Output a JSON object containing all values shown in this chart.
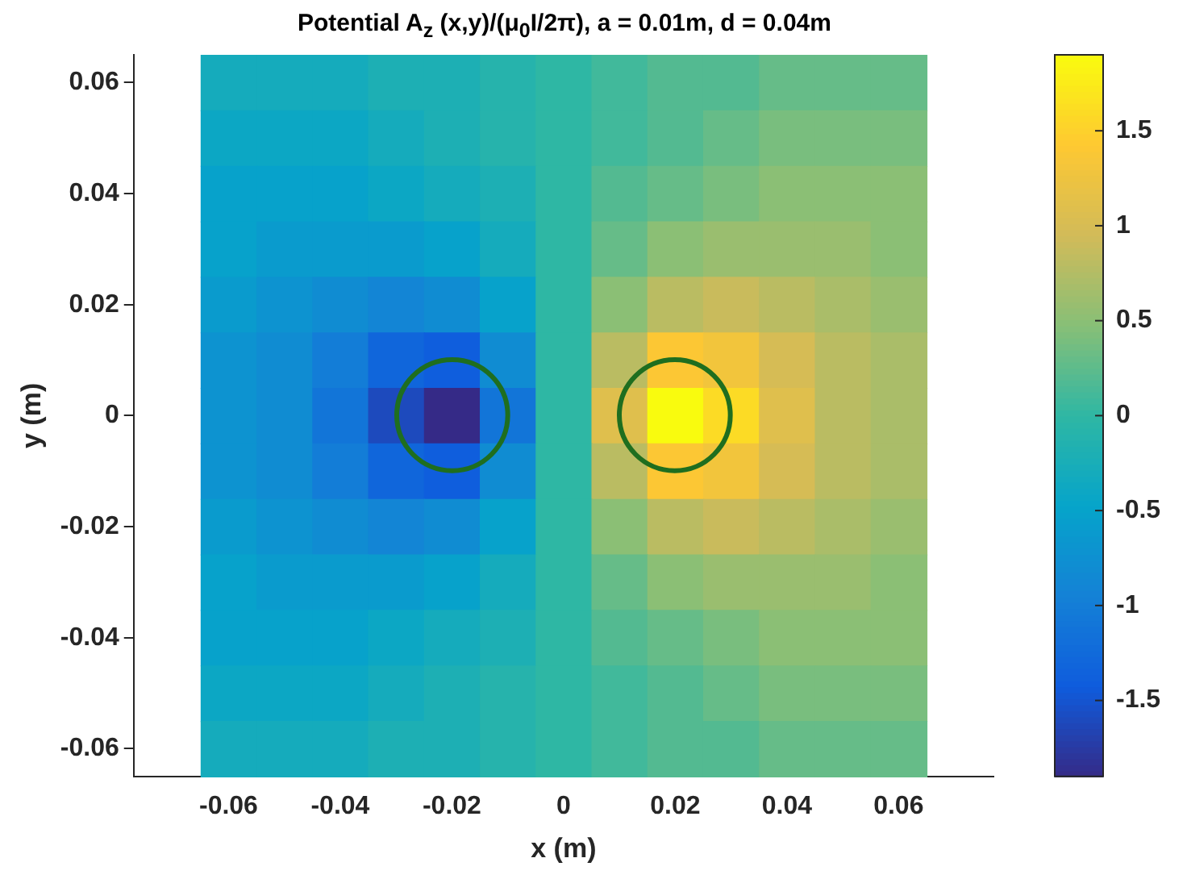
{
  "chart_data": {
    "type": "heatmap",
    "title": "Potential A$_{z}$ (x,y)/(μ$_{0}$I/2π),  a = 0.01m, d = 0.04m",
    "xlabel": "x (m)",
    "ylabel": "y (m)",
    "categories": [
      "-0.06",
      null,
      "-0.04",
      null,
      "-0.02",
      null,
      "0",
      null,
      "0.02",
      null,
      "0.04",
      null,
      "0.06"
    ],
    "y_categories": [
      "0.06",
      null,
      "0.04",
      null,
      "0.02",
      null,
      "0",
      null,
      "-0.02",
      null,
      "-0.04",
      null,
      "-0.06"
    ],
    "cells": [
      [
        -0.3,
        -0.3,
        -0.3,
        -0.2,
        -0.2,
        -0.1,
        0,
        0.1,
        0.2,
        0.2,
        0.3,
        0.3,
        0.3
      ],
      [
        -0.4,
        -0.4,
        -0.4,
        -0.3,
        -0.2,
        -0.1,
        0,
        0.1,
        0.2,
        0.3,
        0.4,
        0.4,
        0.4
      ],
      [
        -0.5,
        -0.5,
        -0.5,
        -0.4,
        -0.3,
        -0.2,
        0,
        0.2,
        0.3,
        0.4,
        0.5,
        0.5,
        0.5
      ],
      [
        -0.5,
        -0.6,
        -0.6,
        -0.6,
        -0.5,
        -0.3,
        0,
        0.3,
        0.5,
        0.6,
        0.6,
        0.6,
        0.5
      ],
      [
        -0.6,
        -0.7,
        -0.8,
        -0.9,
        -0.8,
        -0.5,
        0,
        0.5,
        0.8,
        0.9,
        0.8,
        0.7,
        0.6
      ],
      [
        -0.7,
        -0.8,
        -1.0,
        -1.3,
        -1.4,
        -0.8,
        0,
        0.8,
        1.4,
        1.3,
        1.0,
        0.8,
        0.7
      ],
      [
        -0.7,
        -0.8,
        -1.1,
        -1.6,
        -1.9,
        -1.1,
        0,
        1.1,
        1.9,
        1.6,
        1.1,
        0.8,
        0.7
      ],
      [
        -0.7,
        -0.8,
        -1.0,
        -1.3,
        -1.4,
        -0.8,
        0,
        0.8,
        1.4,
        1.3,
        1.0,
        0.8,
        0.7
      ],
      [
        -0.6,
        -0.7,
        -0.8,
        -0.9,
        -0.8,
        -0.5,
        0,
        0.5,
        0.8,
        0.9,
        0.8,
        0.7,
        0.6
      ],
      [
        -0.5,
        -0.6,
        -0.6,
        -0.6,
        -0.5,
        -0.3,
        0,
        0.3,
        0.5,
        0.6,
        0.6,
        0.6,
        0.5
      ],
      [
        -0.5,
        -0.5,
        -0.5,
        -0.4,
        -0.3,
        -0.2,
        0,
        0.2,
        0.3,
        0.4,
        0.5,
        0.5,
        0.5
      ],
      [
        -0.4,
        -0.4,
        -0.4,
        -0.3,
        -0.2,
        -0.1,
        0,
        0.1,
        0.2,
        0.3,
        0.4,
        0.4,
        0.4
      ],
      [
        -0.3,
        -0.3,
        -0.3,
        -0.2,
        -0.2,
        -0.1,
        0,
        0.1,
        0.2,
        0.2,
        0.3,
        0.3,
        0.3
      ]
    ],
    "clim": [
      -1.9,
      1.9
    ],
    "cticks": [
      -1.5,
      -1,
      -0.5,
      0,
      0.5,
      1,
      1.5
    ],
    "grid": false
  }
}
